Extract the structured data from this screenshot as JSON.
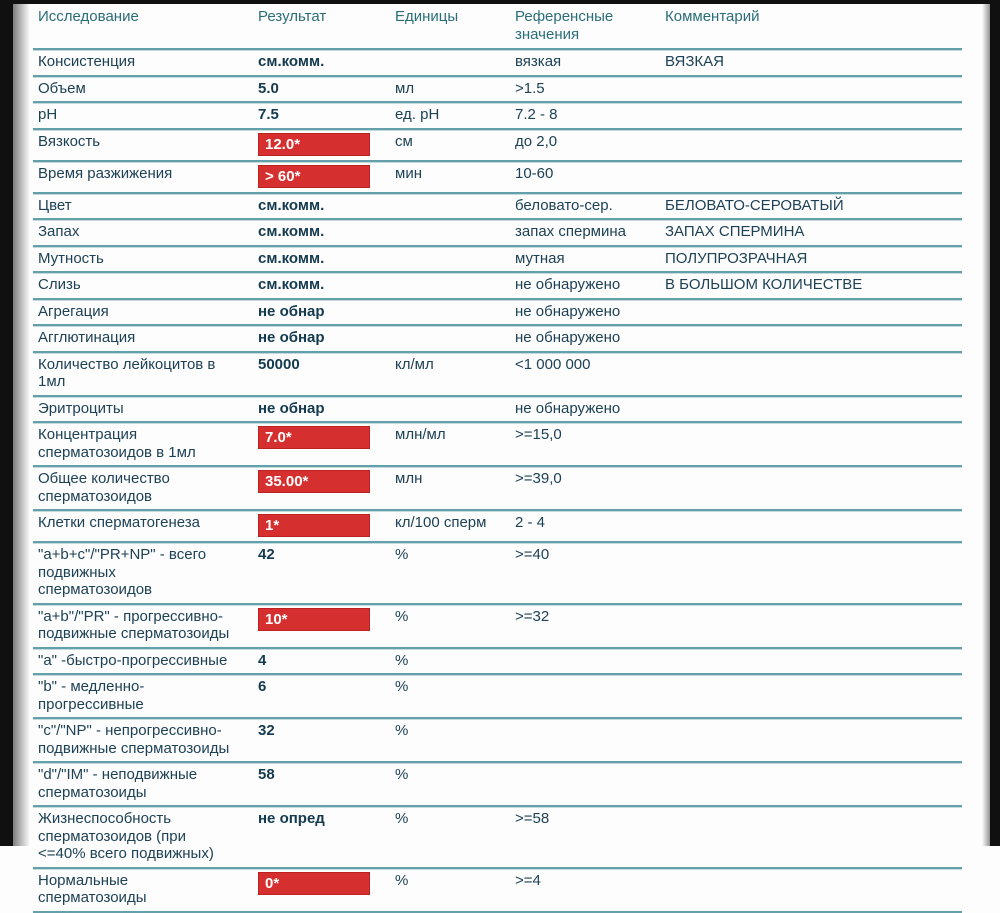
{
  "report": {
    "columns": {
      "test": "Исследование",
      "result": "Результат",
      "units": "Единицы",
      "reference": "Референсные\nзначения",
      "comment": "Комментарий"
    },
    "colors": {
      "abnormal_bg": "#d62f2f",
      "abnormal_text": "#ffffff",
      "separator_line": "#63a0a9",
      "header_text": "#2a6d78",
      "body_text": "#1d4155"
    },
    "rows": [
      {
        "test": "Консистенция",
        "result": "см.комм.",
        "abnormal": false,
        "units": "",
        "reference": "вязкая",
        "comment": "ВЯЗКАЯ"
      },
      {
        "test": "Объем",
        "result": "5.0",
        "abnormal": false,
        "units": "мл",
        "reference": ">1.5",
        "comment": ""
      },
      {
        "test": "pH",
        "result": "7.5",
        "abnormal": false,
        "units": "ед. pH",
        "reference": "7.2 - 8",
        "comment": ""
      },
      {
        "test": "Вязкость",
        "result": "12.0*",
        "abnormal": true,
        "units": "см",
        "reference": "до 2,0",
        "comment": ""
      },
      {
        "test": "Время разжижения",
        "result": "> 60*",
        "abnormal": true,
        "units": "мин",
        "reference": "10-60",
        "comment": ""
      },
      {
        "test": "Цвет",
        "result": "см.комм.",
        "abnormal": false,
        "units": "",
        "reference": "беловато-сер.",
        "comment": "БЕЛОВАТО-СЕРОВАТЫЙ"
      },
      {
        "test": "Запах",
        "result": "см.комм.",
        "abnormal": false,
        "units": "",
        "reference": "запах спермина",
        "comment": "ЗАПАХ СПЕРМИНА"
      },
      {
        "test": "Мутность",
        "result": "см.комм.",
        "abnormal": false,
        "units": "",
        "reference": "мутная",
        "comment": "ПОЛУПРОЗРАЧНАЯ"
      },
      {
        "test": "Слизь",
        "result": "см.комм.",
        "abnormal": false,
        "units": "",
        "reference": "не обнаружено",
        "comment": "В БОЛЬШОМ КОЛИЧЕСТВЕ"
      },
      {
        "test": "Агрегация",
        "result": "не обнар",
        "abnormal": false,
        "units": "",
        "reference": "не обнаружено",
        "comment": ""
      },
      {
        "test": "Агглютинация",
        "result": "не обнар",
        "abnormal": false,
        "units": "",
        "reference": "не обнаружено",
        "comment": ""
      },
      {
        "test": "Количество лейкоцитов в\n1мл",
        "result": "50000",
        "abnormal": false,
        "units": "кл/мл",
        "reference": "<1 000 000",
        "comment": ""
      },
      {
        "test": "Эритроциты",
        "result": "не обнар",
        "abnormal": false,
        "units": "",
        "reference": "не обнаружено",
        "comment": ""
      },
      {
        "test": "Концентрация\nсперматозоидов в 1мл",
        "result": "7.0*",
        "abnormal": true,
        "units": "млн/мл",
        "reference": ">=15,0",
        "comment": ""
      },
      {
        "test": "Общее количество\nсперматозоидов",
        "result": "35.00*",
        "abnormal": true,
        "units": "млн",
        "reference": ">=39,0",
        "comment": ""
      },
      {
        "test": "Клетки сперматогенеза",
        "result": "1*",
        "abnormal": true,
        "units": "кл/100 сперм",
        "reference": "2 - 4",
        "comment": ""
      },
      {
        "test": "\"a+b+c\"/\"PR+NP\" - всего\nподвижных\nсперматозоидов",
        "result": "42",
        "abnormal": false,
        "units": "%",
        "reference": ">=40",
        "comment": ""
      },
      {
        "test": "\"a+b\"/\"PR\" - прогрессивно-\nподвижные сперматозоиды",
        "result": "10*",
        "abnormal": true,
        "units": "%",
        "reference": ">=32",
        "comment": ""
      },
      {
        "test": "\"a\" -быстро-прогрессивные",
        "result": "4",
        "abnormal": false,
        "units": "%",
        "reference": "",
        "comment": ""
      },
      {
        "test": "\"b\" - медленно-\nпрогрессивные",
        "result": "6",
        "abnormal": false,
        "units": "%",
        "reference": "",
        "comment": ""
      },
      {
        "test": "\"c\"/\"NP\" - непрогрессивно-\nподвижные сперматозоиды",
        "result": "32",
        "abnormal": false,
        "units": "%",
        "reference": "",
        "comment": ""
      },
      {
        "test": "\"d\"/\"IM\" - неподвижные\nсперматозоиды",
        "result": "58",
        "abnormal": false,
        "units": "%",
        "reference": "",
        "comment": ""
      },
      {
        "test": "Жизнеспособность\nсперматозоидов (при\n<=40% всего подвижных)",
        "result": "не опред",
        "abnormal": false,
        "units": "%",
        "reference": ">=58",
        "comment": ""
      },
      {
        "test": "Нормальные\nсперматозоиды",
        "result": "0*",
        "abnormal": true,
        "units": "%",
        "reference": ">=4",
        "comment": ""
      }
    ]
  }
}
